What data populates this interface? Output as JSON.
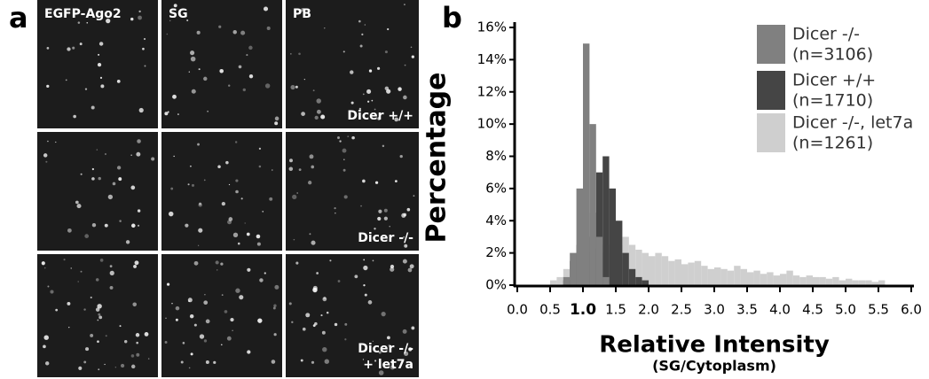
{
  "panel_a": {
    "label": "a",
    "column_titles": [
      "EGFP-Ago2",
      "SG",
      "PB"
    ],
    "row_labels": [
      [
        "Dicer +/+"
      ],
      [
        "Dicer -/-"
      ],
      [
        "Dicer -/-",
        "+ let7a"
      ]
    ]
  },
  "chart_data": {
    "type": "histogram",
    "panel_label": "b",
    "ylabel": "Percentage",
    "xlabel": "Relative Intensity",
    "xlabel_sub": "(SG/Cytoplasm)",
    "xlim": [
      0,
      6
    ],
    "ylim": [
      0,
      16
    ],
    "xticks": [
      {
        "value": 0,
        "label": "0.0"
      },
      {
        "value": 0.5,
        "label": "0.5"
      },
      {
        "value": 1,
        "label": "1.0",
        "bold": true
      },
      {
        "value": 1.5,
        "label": "1.5"
      },
      {
        "value": 2,
        "label": "2.0"
      },
      {
        "value": 2.5,
        "label": "2.5"
      },
      {
        "value": 3,
        "label": "3.0"
      },
      {
        "value": 3.5,
        "label": "3.5"
      },
      {
        "value": 4,
        "label": "4.0"
      },
      {
        "value": 4.5,
        "label": "4.5"
      },
      {
        "value": 5,
        "label": "5.0"
      },
      {
        "value": 5.5,
        "label": "5.5"
      },
      {
        "value": 6,
        "label": "6.0"
      }
    ],
    "yticks": [
      {
        "value": 0,
        "label": "0%"
      },
      {
        "value": 2,
        "label": "2%"
      },
      {
        "value": 4,
        "label": "4%"
      },
      {
        "value": 6,
        "label": "6%"
      },
      {
        "value": 8,
        "label": "8%"
      },
      {
        "value": 10,
        "label": "10%"
      },
      {
        "value": 12,
        "label": "12%"
      },
      {
        "value": 14,
        "label": "14%"
      },
      {
        "value": 16,
        "label": "16%"
      }
    ],
    "grid": false,
    "legend": "top-right",
    "bins": [
      0.5,
      0.6,
      0.7,
      0.8,
      0.9,
      1.0,
      1.1,
      1.2,
      1.3,
      1.4,
      1.5,
      1.6,
      1.7,
      1.8,
      1.9,
      2.0,
      2.1,
      2.2,
      2.3,
      2.4,
      2.5,
      2.6,
      2.7,
      2.8,
      2.9,
      3.0,
      3.1,
      3.2,
      3.3,
      3.4,
      3.5,
      3.6,
      3.7,
      3.8,
      3.9,
      4.0,
      4.1,
      4.2,
      4.3,
      4.4,
      4.5,
      4.6,
      4.7,
      4.8,
      4.9,
      5.0,
      5.1,
      5.2,
      5.3,
      5.4,
      5.5,
      5.6
    ],
    "series": [
      {
        "name": "Dicer  -/-",
        "note": "(n=3106)",
        "color": "#808080",
        "values": [
          0,
          0,
          0.5,
          2,
          6,
          15,
          10,
          3,
          0.5,
          0,
          0,
          0,
          0,
          0,
          0,
          0,
          0,
          0,
          0,
          0,
          0,
          0,
          0,
          0,
          0,
          0,
          0,
          0,
          0,
          0,
          0,
          0,
          0,
          0,
          0,
          0,
          0,
          0,
          0,
          0,
          0,
          0,
          0,
          0,
          0,
          0,
          0,
          0,
          0,
          0,
          0
        ]
      },
      {
        "name": "Dicer +/+",
        "note": "(n=1710)",
        "color": "#454545",
        "values": [
          0,
          0,
          0.3,
          1.5,
          2.5,
          3,
          4.5,
          7,
          8,
          6,
          4,
          2,
          1,
          0.5,
          0.3,
          0,
          0,
          0,
          0,
          0,
          0,
          0,
          0,
          0,
          0,
          0,
          0,
          0,
          0,
          0,
          0,
          0,
          0,
          0,
          0,
          0,
          0,
          0,
          0,
          0,
          0,
          0,
          0,
          0,
          0,
          0,
          0,
          0,
          0,
          0,
          0
        ]
      },
      {
        "name": "Dicer -/-, let7a",
        "note": "(n=1261)",
        "color": "#cfcfcf",
        "values": [
          0.3,
          0.5,
          1,
          1.5,
          2,
          2,
          2.3,
          2,
          2.5,
          2,
          2.5,
          3,
          2.5,
          2.2,
          2,
          1.8,
          2,
          1.8,
          1.5,
          1.6,
          1.3,
          1.4,
          1.5,
          1.2,
          1,
          1.1,
          1,
          0.9,
          1.2,
          1,
          0.8,
          0.9,
          0.7,
          0.8,
          0.6,
          0.7,
          0.9,
          0.6,
          0.5,
          0.6,
          0.5,
          0.5,
          0.4,
          0.5,
          0.3,
          0.4,
          0.3,
          0.3,
          0.3,
          0.2,
          0.3
        ]
      }
    ]
  }
}
